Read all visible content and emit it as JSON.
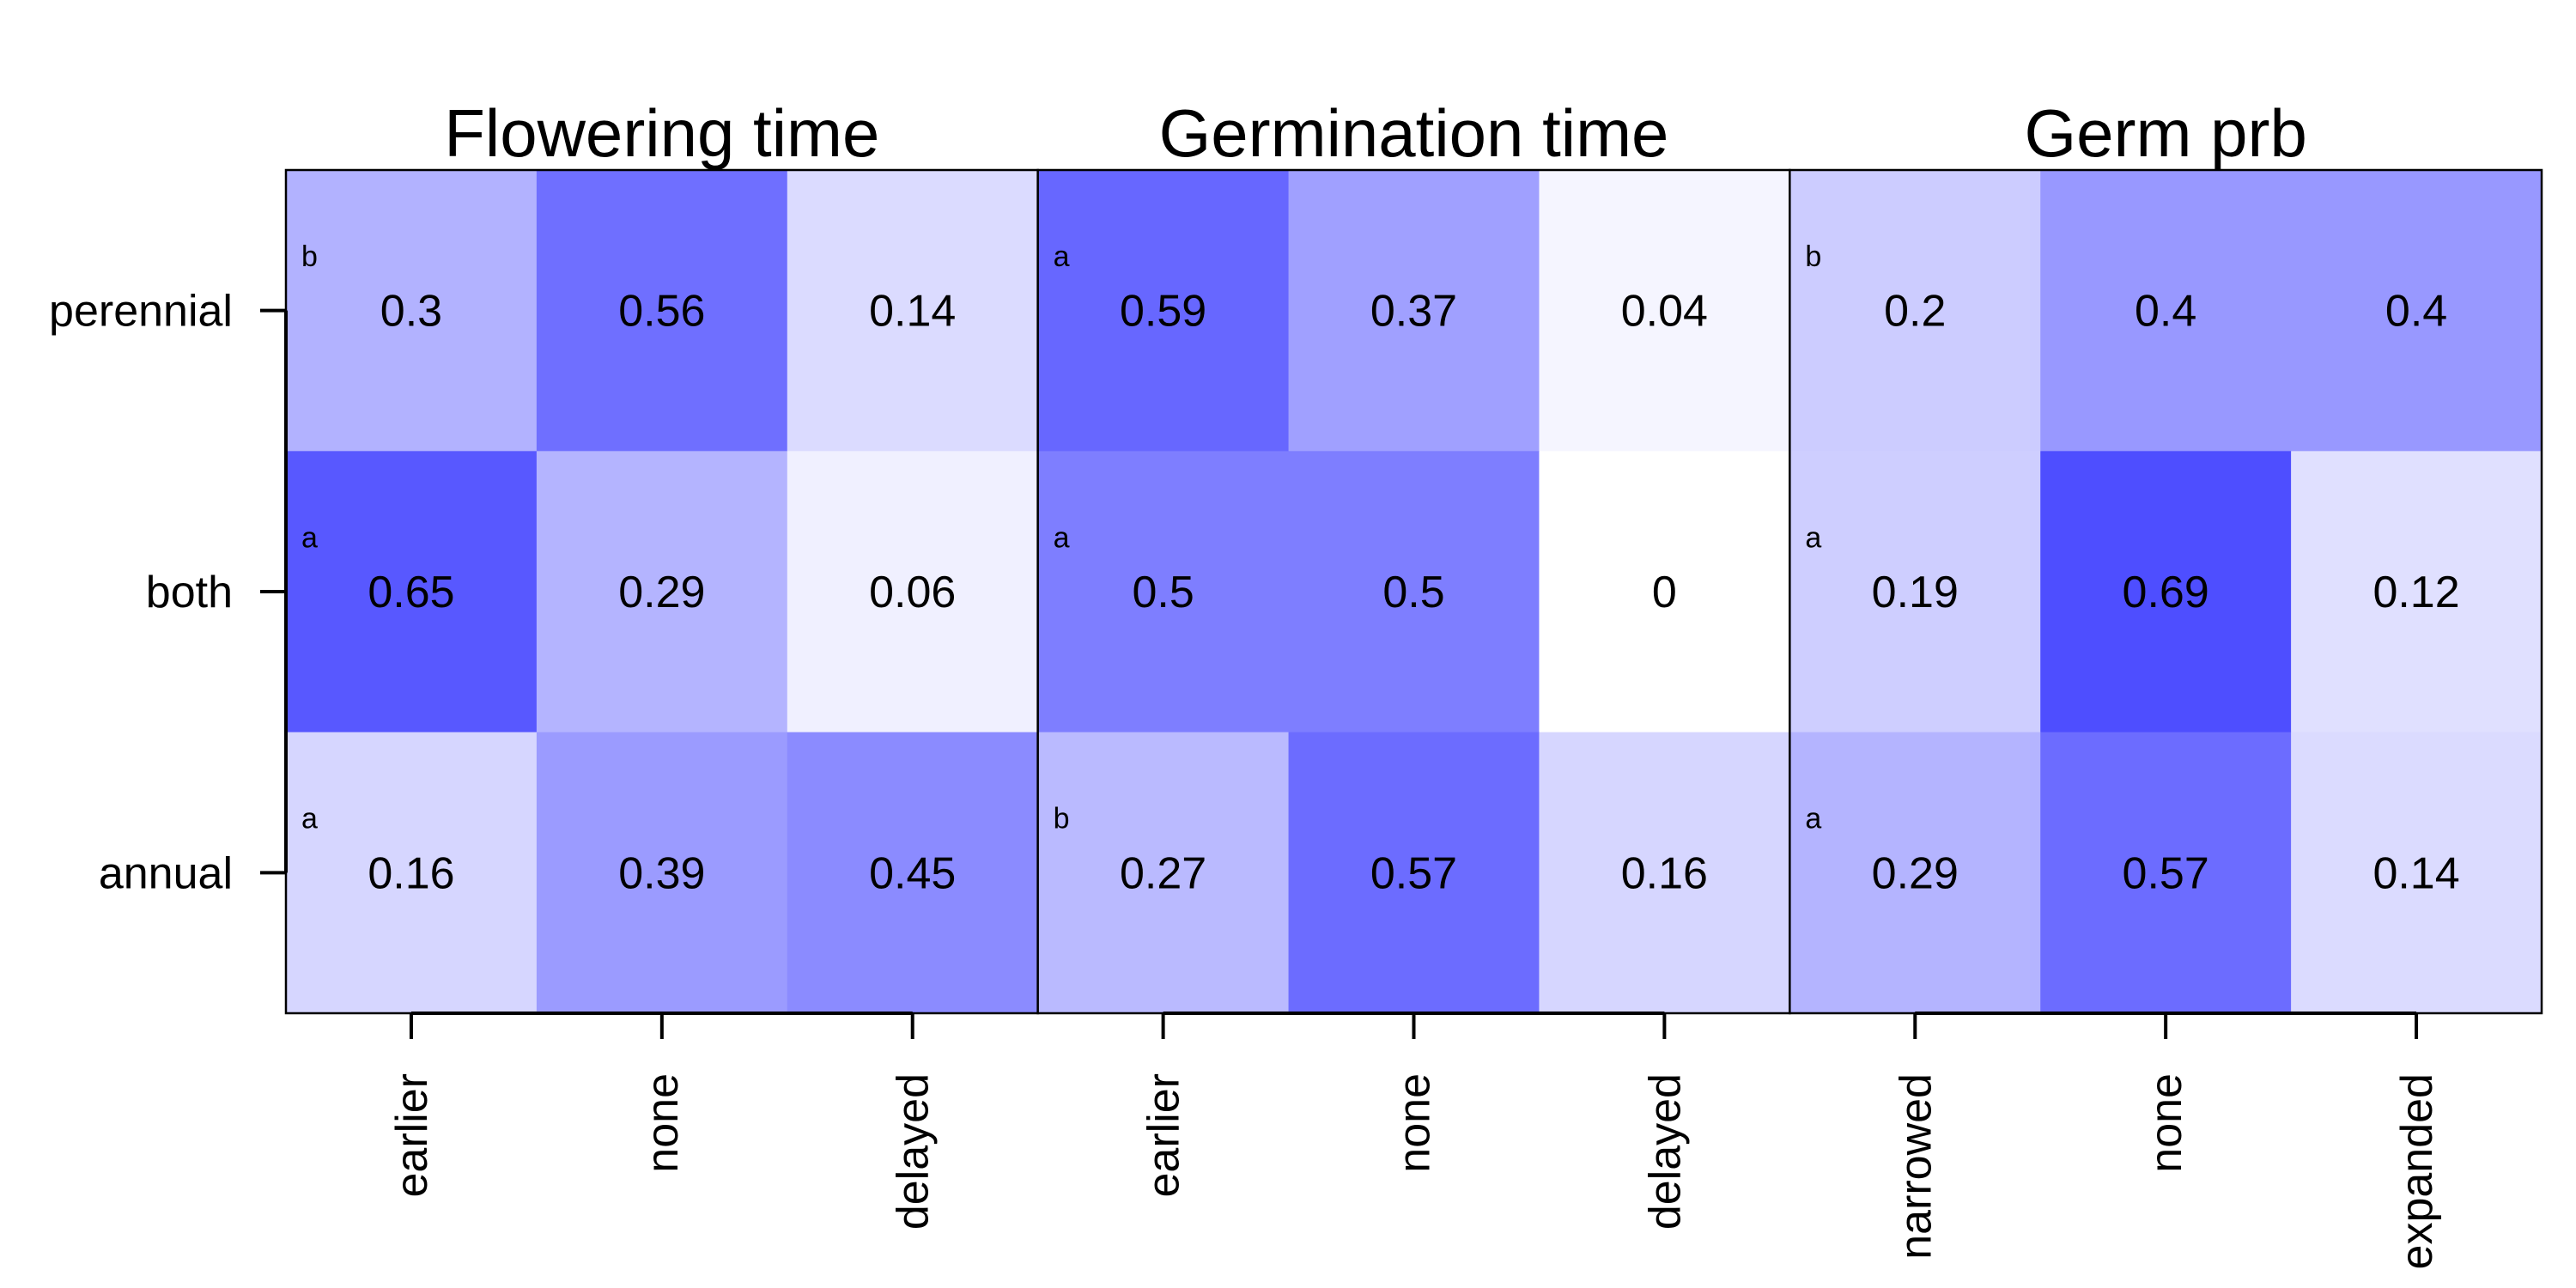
{
  "chart_data": {
    "type": "heatmap",
    "colors": {
      "high": "#4b4bff",
      "low": "#ffffff"
    },
    "rows": [
      "perennial",
      "both",
      "annual"
    ],
    "panels": [
      {
        "title": "Flowering time",
        "columns": [
          "earlier",
          "none",
          "delayed"
        ],
        "values": [
          [
            0.3,
            0.56,
            0.14
          ],
          [
            0.65,
            0.29,
            0.06
          ],
          [
            0.16,
            0.39,
            0.45
          ]
        ],
        "letters": [
          "b",
          "a",
          "a"
        ]
      },
      {
        "title": "Germination time",
        "columns": [
          "earlier",
          "none",
          "delayed"
        ],
        "values": [
          [
            0.59,
            0.37,
            0.04
          ],
          [
            0.5,
            0.5,
            0
          ],
          [
            0.27,
            0.57,
            0.16
          ]
        ],
        "letters": [
          "a",
          "a",
          "b"
        ]
      },
      {
        "title": "Germ prb",
        "columns": [
          "narrowed",
          "none",
          "expanded"
        ],
        "values": [
          [
            0.2,
            0.4,
            0.4
          ],
          [
            0.19,
            0.69,
            0.12
          ],
          [
            0.29,
            0.57,
            0.14
          ]
        ],
        "letters": [
          "b",
          "a",
          "a"
        ]
      }
    ]
  }
}
